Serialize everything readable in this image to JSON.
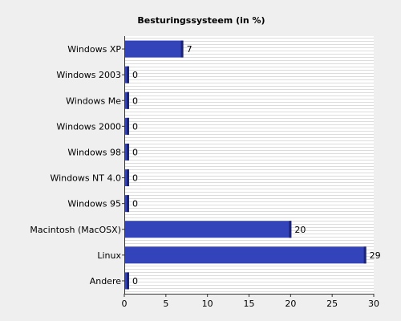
{
  "chart_data": {
    "type": "bar",
    "orientation": "horizontal",
    "title": "Besturingssysteem (in %)",
    "categories": [
      "Windows XP",
      "Windows 2003",
      "Windows Me",
      "Windows 2000",
      "Windows 98",
      "Windows NT 4.0",
      "Windows 95",
      "Macintosh (MacOSX)",
      "Linux",
      "Andere"
    ],
    "values": [
      7,
      0,
      0,
      0,
      0,
      0,
      0,
      20,
      29,
      0
    ],
    "value_labels": [
      "7",
      "0",
      "0",
      "0",
      "0",
      "0",
      "0",
      "20",
      "29",
      "0"
    ],
    "xlim": [
      0,
      30
    ],
    "x_ticks": [
      0,
      5,
      10,
      15,
      20,
      25,
      30
    ],
    "x_tick_labels": [
      "0",
      "5",
      "10",
      "15",
      "20",
      "25",
      "30"
    ],
    "xlabel": "",
    "ylabel": "",
    "grid": true,
    "bar_color": "#3344bb",
    "bar_side_color": "#1a237e",
    "background_color": "#efefef",
    "plot_background_color": "#ffffff"
  }
}
